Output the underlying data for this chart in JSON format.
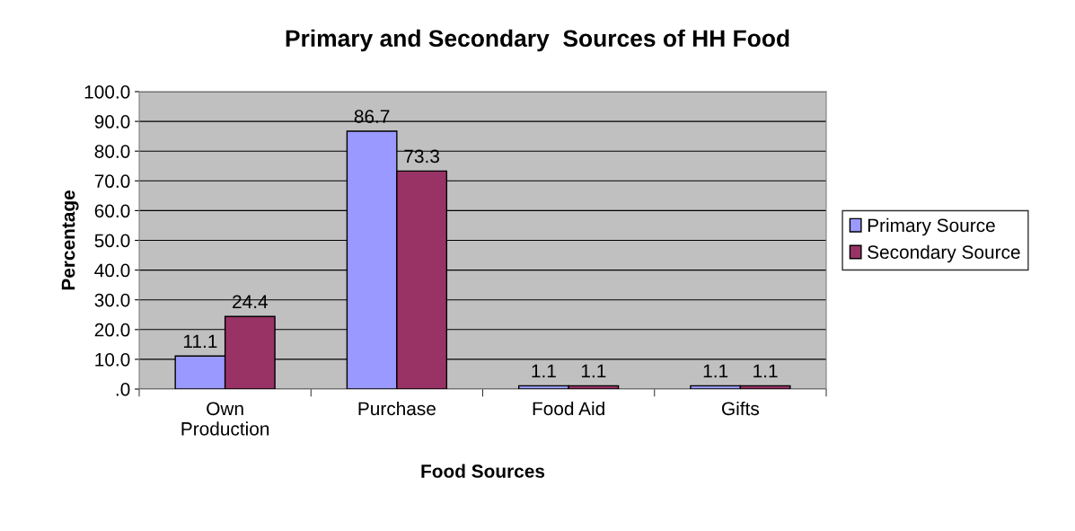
{
  "chart_data": {
    "type": "bar",
    "title": "Primary and Secondary  Sources of HH Food",
    "xlabel": "Food Sources",
    "ylabel": "Percentage",
    "categories": [
      "Own\nProduction",
      "Purchase",
      "Food Aid",
      "Gifts"
    ],
    "series": [
      {
        "name": "Primary Source",
        "color": "#9999ff",
        "values": [
          11.1,
          86.7,
          1.1,
          1.1
        ]
      },
      {
        "name": "Secondary Source",
        "color": "#993366",
        "values": [
          24.4,
          73.3,
          1.1,
          1.1
        ]
      }
    ],
    "ylim": [
      0,
      100
    ],
    "yticks": [
      {
        "value": 0,
        "label": ".0"
      },
      {
        "value": 10,
        "label": "10.0"
      },
      {
        "value": 20,
        "label": "20.0"
      },
      {
        "value": 30,
        "label": "30.0"
      },
      {
        "value": 40,
        "label": "40.0"
      },
      {
        "value": 50,
        "label": "50.0"
      },
      {
        "value": 60,
        "label": "60.0"
      },
      {
        "value": 70,
        "label": "70.0"
      },
      {
        "value": 80,
        "label": "80.0"
      },
      {
        "value": 90,
        "label": "90.0"
      },
      {
        "value": 100,
        "label": "100.0"
      }
    ],
    "grid": "y",
    "legend": "right",
    "data_labels": true
  }
}
